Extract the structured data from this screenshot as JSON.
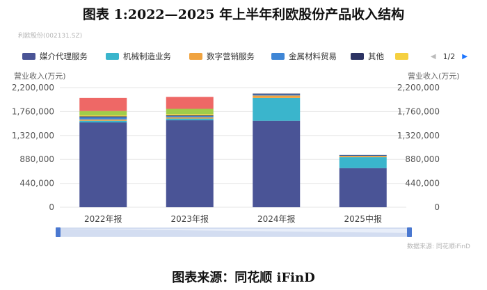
{
  "title": "图表 1:2022—2025 年上半年利欧股份产品收入结构",
  "stock_label": "利欧股份(002131.SZ)",
  "legend": {
    "items": [
      "媒介代理服务",
      "机械制造业务",
      "数字营销服务",
      "金属材料贸易",
      "其他",
      ""
    ],
    "page": "1/2",
    "prev_icon": "triangle-left",
    "next_icon": "triangle-right"
  },
  "axes": {
    "left_unit": "营业收入(万元)",
    "right_unit": "营业收入(万元)"
  },
  "source_note": "数据来源: 同花顺iFinD",
  "footer": "图表来源：同花顺 iFinD",
  "colors": {
    "媒介代理服务": "#4a5496",
    "机械制造业务": "#3ab5cc",
    "数字营销服务": "#f0a340",
    "金属材料贸易": "#3f86d6",
    "其他": "#2c3363",
    "hidden_series_1": "#f5d040",
    "hidden_series_2": "#a0cc4a",
    "hidden_series_3": "#ee6866"
  },
  "chart_data": {
    "type": "bar",
    "stacked": true,
    "categories": [
      "2022年报",
      "2023年报",
      "2024年报",
      "2025中报"
    ],
    "ylim": [
      0,
      2200000
    ],
    "yticks": [
      0,
      440000,
      880000,
      1320000,
      1760000,
      2200000
    ],
    "ytick_labels": [
      "0",
      "440,000",
      "880,000",
      "1,320,000",
      "1,760,000",
      "2,200,000"
    ],
    "grid": true,
    "legend_position": "top",
    "series": [
      {
        "name": "媒介代理服务",
        "values": [
          1560000,
          1600000,
          1590000,
          720000
        ]
      },
      {
        "name": "机械制造业务",
        "values": [
          30000,
          30000,
          420000,
          200000
        ]
      },
      {
        "name": "数字营销服务",
        "values": [
          25000,
          25000,
          45000,
          25000
        ]
      },
      {
        "name": "金属材料贸易",
        "values": [
          40000,
          20000,
          20000,
          8000
        ]
      },
      {
        "name": "其他",
        "values": [
          15000,
          15000,
          15000,
          8000
        ]
      },
      {
        "name": "",
        "values": [
          20000,
          20000,
          0,
          0
        ]
      },
      {
        "name": "",
        "values": [
          80000,
          100000,
          0,
          0
        ]
      },
      {
        "name": "",
        "values": [
          240000,
          220000,
          0,
          0
        ]
      }
    ]
  }
}
